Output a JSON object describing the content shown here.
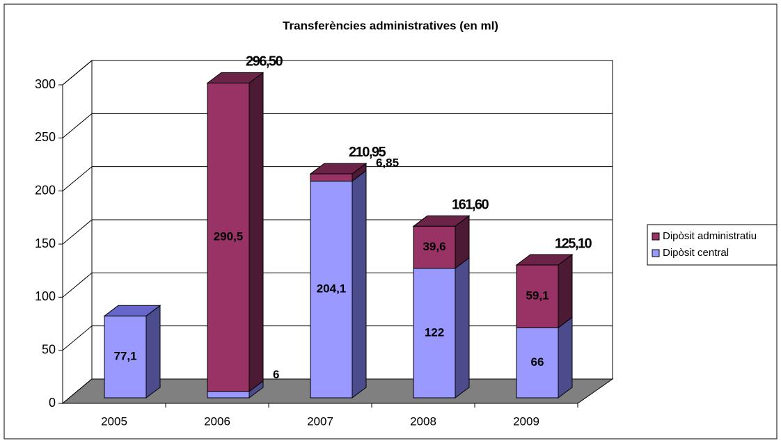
{
  "chart_data": {
    "type": "bar3d_stacked",
    "title": "Transferències administratives (en ml)",
    "categories": [
      "2005",
      "2006",
      "2007",
      "2008",
      "2009"
    ],
    "series": [
      {
        "name": "Dipòsit central",
        "color": "#9999ff",
        "values": [
          77.1,
          6,
          204.1,
          122,
          66
        ],
        "value_labels": [
          "77,1",
          "6",
          "204,1",
          "122",
          "66"
        ]
      },
      {
        "name": "Dipòsit administratiu",
        "color": "#993366",
        "values": [
          null,
          290.5,
          6.85,
          39.6,
          59.1
        ],
        "value_labels": [
          null,
          "290,5",
          "6,85",
          "39,6",
          "59,1"
        ]
      }
    ],
    "totals": [
      null,
      296.5,
      210.95,
      161.6,
      125.1
    ],
    "total_labels": [
      null,
      "296,50",
      "210,95",
      "161,60",
      "125,10"
    ],
    "ylim": [
      0,
      300
    ],
    "yticks": [
      0,
      50,
      100,
      150,
      200,
      250,
      300
    ],
    "grid": true,
    "legend": "right"
  }
}
